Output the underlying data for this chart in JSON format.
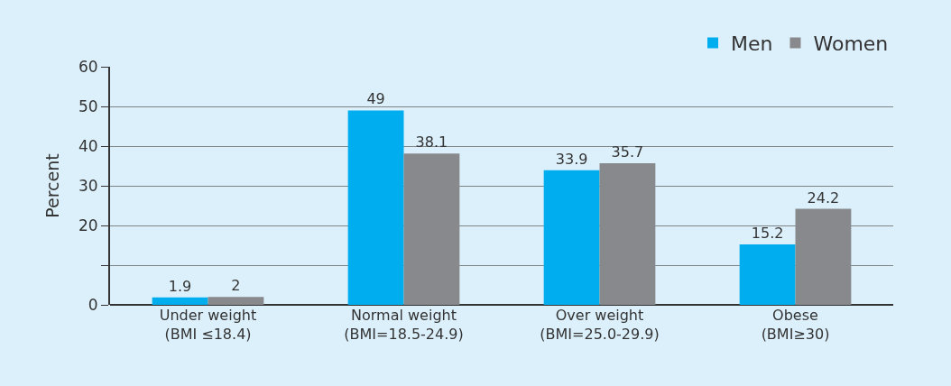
{
  "chart_data": {
    "type": "bar",
    "ylabel": "Percent",
    "categories": [
      "Under weight\n(BMI ≤18.4)",
      "Normal weight\n(BMI=18.5-24.9)",
      "Over weight\n(BMI=25.0-29.9)",
      "Obese\n(BMI≥30)"
    ],
    "series": [
      {
        "name": "Men",
        "color": "#00aeef",
        "values": [
          1.9,
          49,
          33.9,
          15.2
        ]
      },
      {
        "name": "Women",
        "color": "#88898c",
        "values": [
          2,
          38.1,
          35.7,
          24.2
        ]
      }
    ],
    "ylim": [
      0,
      60
    ],
    "yticks": [
      0,
      {
        "value": 10,
        "label": null
      },
      20,
      30,
      40,
      50,
      60
    ],
    "grid": "y",
    "legend": "top right",
    "data_labels": true
  }
}
